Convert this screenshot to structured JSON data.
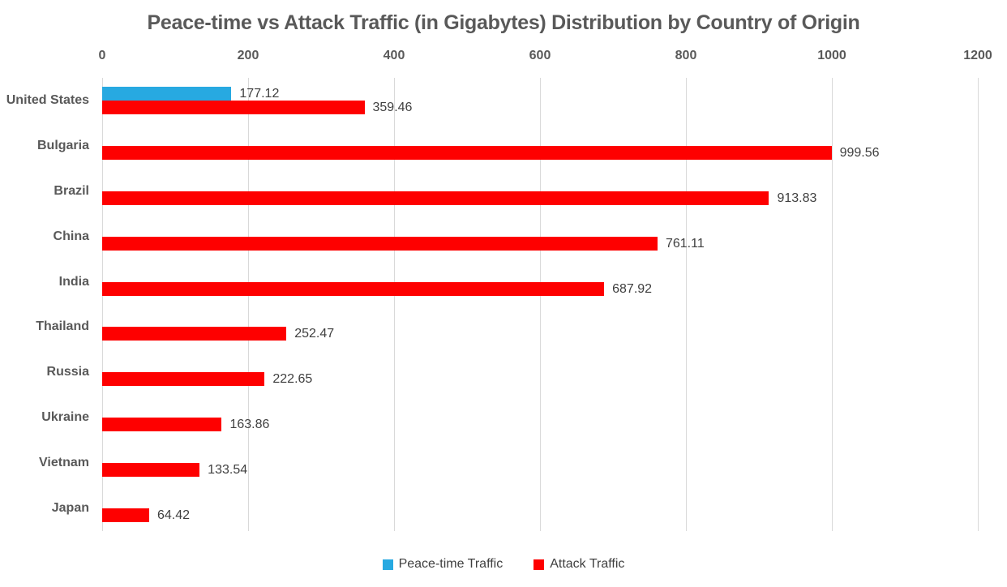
{
  "chart_data": {
    "type": "bar",
    "orientation": "horizontal",
    "title": "Peace-time vs Attack Traffic (in Gigabytes) Distribution by Country of Origin",
    "categories": [
      "United States",
      "Bulgaria",
      "Brazil",
      "China",
      "India",
      "Thailand",
      "Russia",
      "Ukraine",
      "Vietnam",
      "Japan"
    ],
    "series": [
      {
        "name": "Peace-time Traffic",
        "color": "#27A9E1",
        "values": [
          177.12,
          null,
          null,
          null,
          null,
          null,
          null,
          null,
          null,
          null
        ],
        "value_labels": [
          "177.12",
          null,
          null,
          null,
          null,
          null,
          null,
          null,
          null,
          null
        ]
      },
      {
        "name": "Attack Traffic",
        "color": "#FE0000",
        "values": [
          359.46,
          999.56,
          913.83,
          761.11,
          687.92,
          252.47,
          222.65,
          163.86,
          133.54,
          64.42
        ],
        "value_labels": [
          "359.46",
          "999.56",
          "913.83",
          "761.11",
          "687.92",
          "252.47",
          "222.65",
          "163.86",
          "133.54",
          "64.42"
        ]
      }
    ],
    "xlim": [
      0,
      1200
    ],
    "x_ticks": [
      0,
      200,
      400,
      600,
      800,
      1000,
      1200
    ],
    "grid": "vertical",
    "gridline_color": "#D9D9D9",
    "axis_text_color": "#595959",
    "label_text_color": "#3F3F3F",
    "legend_position": "bottom"
  }
}
